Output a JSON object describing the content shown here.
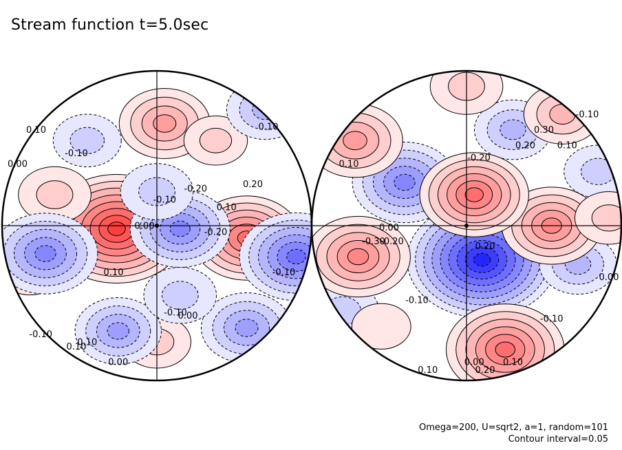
{
  "title": "Stream function t=5.0sec",
  "footer": {
    "params": "Omega=200, U=sqrt2, a=1, random=101",
    "contour_interval": "Contour interval=0.05"
  },
  "chart_data": {
    "type": "heatmap",
    "field": "stream function",
    "time": "t=5.0sec",
    "contour_interval": 0.05,
    "colormap": {
      "negative": "#1a1aff",
      "zero": "#ffffff",
      "positive": "#ff1a1a"
    },
    "panels": [
      {
        "name": "left hemisphere",
        "features": [
          {
            "x": -0.26,
            "y": 0.02,
            "value": 0.42
          },
          {
            "x": 0.58,
            "y": 0.08,
            "value": 0.28
          },
          {
            "x": 0.05,
            "y": -0.66,
            "value": 0.2
          },
          {
            "x": -0.66,
            "y": -0.2,
            "value": 0.12
          },
          {
            "x": 0.0,
            "y": 0.75,
            "value": 0.1
          },
          {
            "x": -0.82,
            "y": 0.3,
            "value": 0.06
          },
          {
            "x": 0.38,
            "y": -0.55,
            "value": 0.08
          },
          {
            "x": 0.15,
            "y": 0.02,
            "value": -0.24
          },
          {
            "x": -0.72,
            "y": 0.18,
            "value": -0.26
          },
          {
            "x": -0.25,
            "y": 0.68,
            "value": -0.18
          },
          {
            "x": 0.58,
            "y": 0.66,
            "value": -0.2
          },
          {
            "x": 0.9,
            "y": 0.2,
            "value": -0.3
          },
          {
            "x": 0.0,
            "y": -0.22,
            "value": -0.12
          },
          {
            "x": -0.45,
            "y": -0.55,
            "value": -0.1
          },
          {
            "x": 0.7,
            "y": -0.75,
            "value": -0.14
          },
          {
            "x": 0.15,
            "y": 0.45,
            "value": -0.12
          }
        ],
        "labels": [
          "0.10",
          "-0.10",
          "0.00",
          "-0.10",
          "-0.20",
          "0.20",
          "-0.20",
          "0.10",
          "-0.10",
          "0.10",
          "0.00",
          "0.10",
          "0.10",
          "-0.10",
          "0.00",
          "-0.10",
          "0.10",
          "0.00"
        ]
      },
      {
        "name": "right hemisphere",
        "features": [
          {
            "x": 0.1,
            "y": 0.22,
            "value": -0.46
          },
          {
            "x": -0.4,
            "y": -0.28,
            "value": -0.26
          },
          {
            "x": 0.3,
            "y": -0.62,
            "value": -0.14
          },
          {
            "x": -0.8,
            "y": 0.55,
            "value": -0.12
          },
          {
            "x": 0.72,
            "y": 0.25,
            "value": -0.14
          },
          {
            "x": 0.85,
            "y": -0.35,
            "value": -0.1
          },
          {
            "x": 0.25,
            "y": 0.8,
            "value": 0.32
          },
          {
            "x": -0.7,
            "y": 0.2,
            "value": 0.26
          },
          {
            "x": 0.55,
            "y": 0.0,
            "value": 0.24
          },
          {
            "x": 0.05,
            "y": -0.2,
            "value": 0.28
          },
          {
            "x": -0.72,
            "y": -0.55,
            "value": 0.22
          },
          {
            "x": 0.62,
            "y": -0.72,
            "value": 0.14
          },
          {
            "x": 0.0,
            "y": -0.9,
            "value": 0.12
          },
          {
            "x": -0.55,
            "y": 0.65,
            "value": 0.06
          },
          {
            "x": 0.92,
            "y": -0.05,
            "value": 0.1
          }
        ],
        "labels": [
          "0.10",
          "0.00",
          "-0.20",
          "0.30",
          "0.20",
          "-0.30",
          "0.20",
          "0.10",
          "-0.20",
          "0.00",
          "-0.10",
          "0.00",
          "-0.10",
          "0.10",
          "0.10",
          "0.20",
          "-0.10"
        ]
      }
    ]
  }
}
